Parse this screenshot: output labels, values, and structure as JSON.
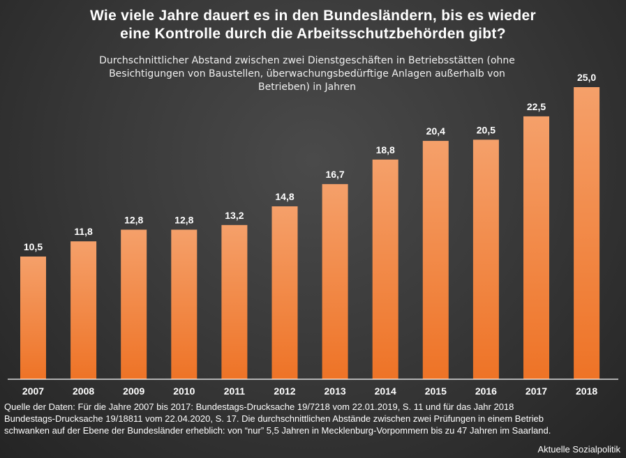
{
  "title": {
    "line1": "Wie viele Jahre dauert es in den Bundesländern, bis es wieder",
    "line2": "eine Kontrolle durch die Arbeitsschutzbehörden gibt?"
  },
  "subtitle": {
    "line1": "Durchschnittlicher Abstand zwischen zwei Dienstgeschäften in Betriebsstätten (ohne",
    "line2": "Besichtigungen von Baustellen, überwachungsbedürftige Anlagen außerhalb von",
    "line3": "Betrieben) in Jahren"
  },
  "source": {
    "line1": "Quelle der Daten: Für die Jahre 2007 bis 2017: Bundestags-Drucksache 19/7218 vom 22.01.2019, S. 11 und für das Jahr 2018",
    "line2": "Bundestags-Drucksache 19/18811 vom 22.04.2020, S. 17. Die durchschnittlichen Abstände zwischen zwei Prüfungen in einem Betrieb",
    "line3": "schwanken auf der Ebene der Bundesländer erheblich: von “nur” 5,5 Jahren in Mecklenburg-Vorpommern bis zu 47 Jahren im Saarland."
  },
  "credit": "Aktuelle Sozialpolitik",
  "colors": {
    "bar_top": "#f5a06a",
    "bar_bottom": "#ee7326",
    "axis": "#ffffff",
    "text": "#ffffff"
  },
  "chart_data": {
    "type": "bar",
    "categories": [
      "2007",
      "2008",
      "2009",
      "2010",
      "2011",
      "2012",
      "2013",
      "2014",
      "2015",
      "2016",
      "2017",
      "2018"
    ],
    "values": [
      10.5,
      11.8,
      12.8,
      12.8,
      13.2,
      14.8,
      16.7,
      18.8,
      20.4,
      20.5,
      22.5,
      25.0
    ],
    "labels": [
      "10,5",
      "11,8",
      "12,8",
      "12,8",
      "13,2",
      "14,8",
      "16,7",
      "18,8",
      "20,4",
      "20,5",
      "22,5",
      "25,0"
    ],
    "ylim": [
      0,
      25
    ],
    "grid": false,
    "legend": "none"
  }
}
